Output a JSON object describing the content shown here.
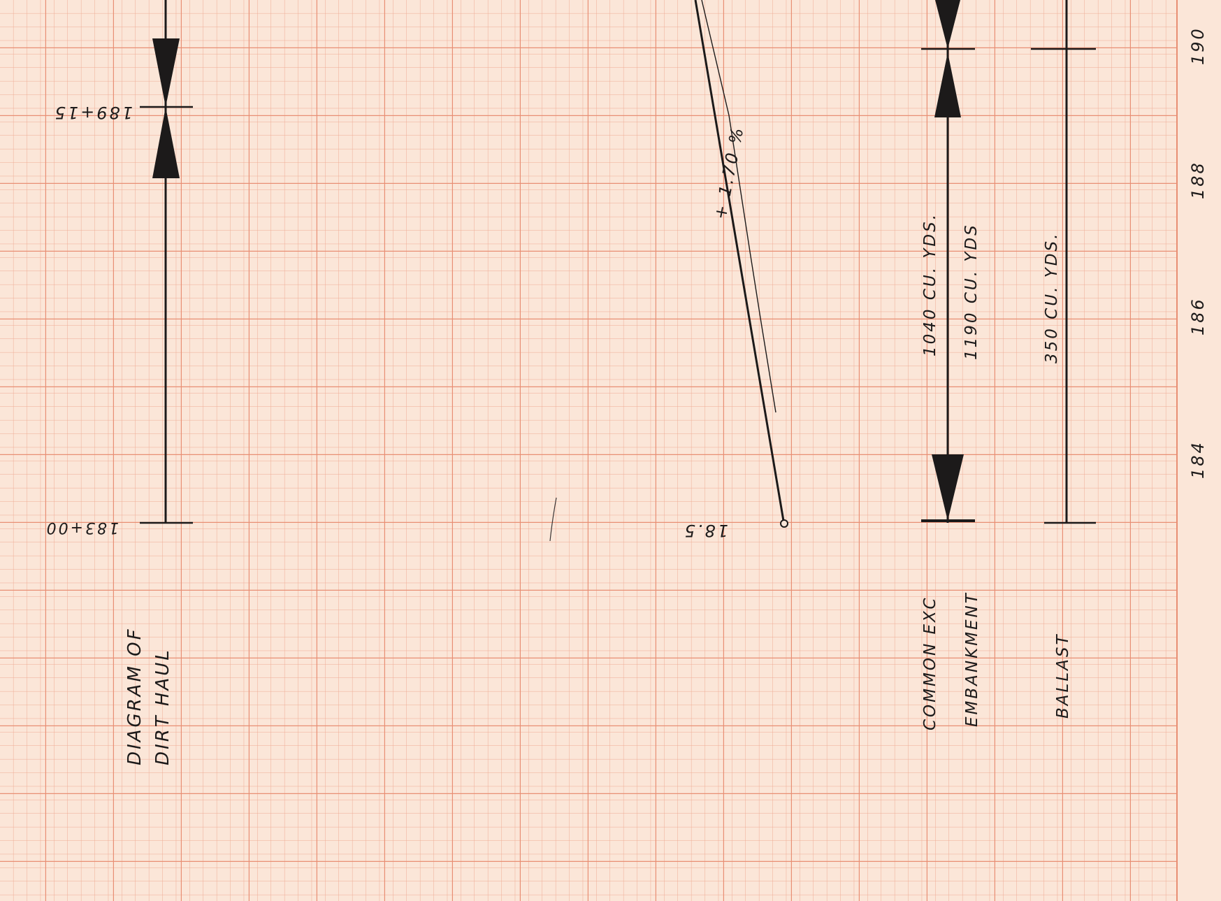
{
  "colors": {
    "paper": "#fbe6d8",
    "grid_minor": "#efab94",
    "grid_major": "#e88f74",
    "ink": "#1c1a1a"
  },
  "dirt_haul": {
    "title_line1": "DIAGRAM OF",
    "title_line2": "DIRT HAUL",
    "station_start": "183+00",
    "station_mid": "189+15"
  },
  "grade": {
    "elevation": "18.5",
    "percent": "+ 1.70 %"
  },
  "quantities": {
    "common_exc_label": "COMMON EXC",
    "common_exc_value": "1040  CU. YDS.",
    "embankment_label": "EMBANKMENT",
    "embankment_value": "1190  CU. YDS",
    "ballast_label": "BALLAST",
    "ballast_value": "350  CU. YDS."
  },
  "stations_axis": [
    "184",
    "186",
    "188",
    "190"
  ]
}
